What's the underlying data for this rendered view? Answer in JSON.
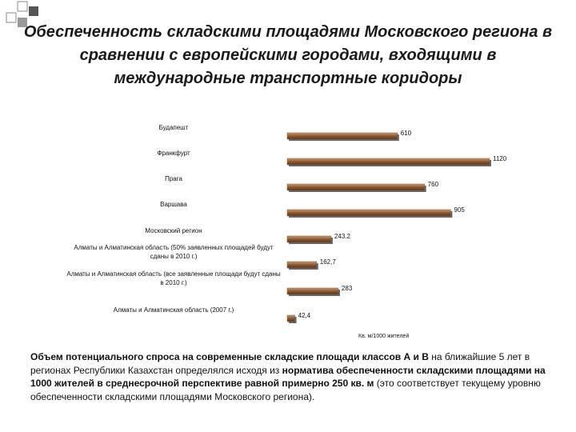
{
  "chart_data": {
    "type": "barh",
    "title": "Обеспеченность складскими площадями Московского региона в сравнении с европейскими городами, входящими в международные транспортные коридоры",
    "categories": [
      "Будапешт",
      "Франкфурт",
      "Прага",
      "Варшава",
      "Московский регион",
      "Алматы и Алматинская область (50% заявленных площадей будут сданы в 2010 г.)",
      "Алматы и Алматинская область (все заявленные площади будут сданы в 2010 г.)",
      "Алматы и Алматинская область (2007 г.)"
    ],
    "values": [
      610,
      1120,
      760,
      905,
      243.2,
      162.7,
      283,
      42.4
    ],
    "value_labels": [
      "610",
      "1120",
      "760",
      "905",
      "243.2",
      "162,7",
      "283",
      "42,4"
    ],
    "color": "#8a5a36",
    "unit_label": "Кв. м/1000 жителей"
  },
  "note": [
    {
      "text": "Объем потенциального спроса  на современные складские площади классов А и В",
      "bold": true
    },
    {
      "text": " на ближайшие 5 лет в регионах Республики Казахстан определялся исходя из ",
      "bold": false
    },
    {
      "text": " норматива обеспеченности складскими площадями на 1000 жителей в среднесрочной перспективе равной примерно 250 кв. м",
      "bold": true
    },
    {
      "text": " (это соответствует текущему уровню обеспеченности складскими площадями Московского региона).",
      "bold": false
    }
  ]
}
